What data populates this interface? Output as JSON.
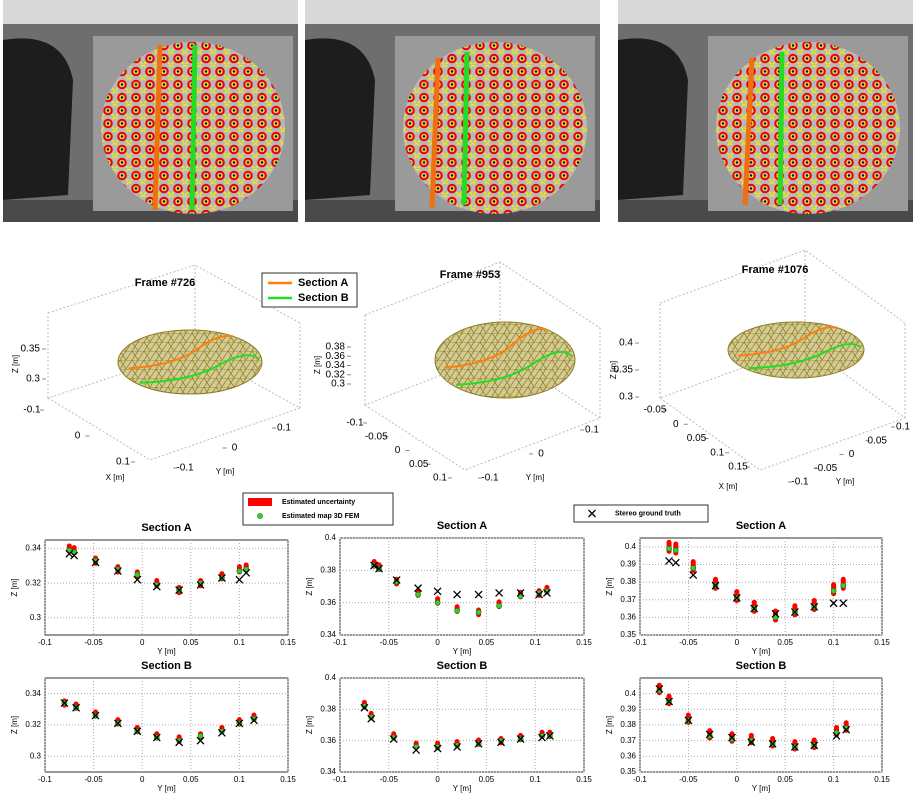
{
  "legend_sections": [
    {
      "name": "Section A",
      "color": "#ff7f0e"
    },
    {
      "name": "Section B",
      "color": "#22dd22"
    }
  ],
  "legend_estimates": [
    {
      "name": "Estimated uncertainty",
      "color": "#ff0000",
      "marker": "bar"
    },
    {
      "name": "Estimated map 3D FEM",
      "color": "#33cc33",
      "marker": "circle"
    }
  ],
  "legend_truth": [
    {
      "name": "Stereo ground truth",
      "color": "#000000",
      "marker": "x"
    }
  ],
  "chart_data": [
    {
      "type": "surface3d",
      "title": "Frame #726",
      "zlabel": "Z [m]",
      "xlabel": "X [m]",
      "ylabel": "Y [m]",
      "zlim": [
        0.3,
        0.35
      ],
      "zticks": [
        0.3,
        0.35
      ],
      "xlim": [
        -0.1,
        0.1
      ],
      "xticks": [
        -0.1,
        0,
        0.1
      ],
      "ylim": [
        -0.1,
        0.1
      ],
      "yticks": [
        -0.1,
        0,
        0.1
      ]
    },
    {
      "type": "surface3d",
      "title": "Frame #953",
      "zlabel": "Z [m]",
      "ylabel": "Y [m]",
      "zlim": [
        0.3,
        0.38
      ],
      "zticks": [
        0.3,
        0.32,
        0.34,
        0.36,
        0.38
      ],
      "xlim": [
        -0.1,
        0.1
      ],
      "xticks": [
        -0.1,
        -0.05,
        0,
        0.05,
        0.1
      ],
      "ylim": [
        -0.1,
        0.1
      ],
      "yticks": [
        -0.1,
        0,
        0.1
      ]
    },
    {
      "type": "surface3d",
      "title": "Frame #1076",
      "zlabel": "Z [m]",
      "xlabel": "X [m]",
      "ylabel": "Y [m]",
      "zlim": [
        0.3,
        0.4
      ],
      "zticks": [
        0.3,
        0.35,
        0.4
      ],
      "xlim": [
        -0.05,
        0.15
      ],
      "xticks": [
        -0.05,
        0,
        0.05,
        0.1,
        0.15
      ],
      "ylim": [
        -0.1,
        0.1
      ],
      "yticks": [
        -0.1,
        -0.05,
        0,
        0.05,
        0.1
      ]
    },
    {
      "type": "scatter",
      "title": "Section A",
      "xlabel": "Y [m]",
      "ylabel": "Z [m]",
      "grid": true,
      "xlim": [
        -0.1,
        0.15
      ],
      "xticks": [
        -0.1,
        -0.05,
        0,
        0.05,
        0.1,
        0.15
      ],
      "ylim": [
        0.29,
        0.345
      ],
      "yticks": [
        0.3,
        0.32,
        0.34
      ],
      "x": [
        -0.075,
        -0.07,
        -0.048,
        -0.025,
        -0.005,
        0.015,
        0.038,
        0.06,
        0.082,
        0.1,
        0.107
      ],
      "series": [
        {
          "color": "#ff0000",
          "marker": "bar",
          "values": [
            0.34,
            0.339,
            0.333,
            0.328,
            0.325,
            0.32,
            0.316,
            0.32,
            0.324,
            0.328,
            0.329
          ],
          "errors": [
            0.003,
            0.003,
            0.003,
            0.003,
            0.003,
            0.003,
            0.003,
            0.003,
            0.003,
            0.003,
            0.003
          ]
        },
        {
          "color": "#33cc33",
          "marker": "circle",
          "values": [
            0.339,
            0.338,
            0.333,
            0.328,
            0.325,
            0.319,
            0.316,
            0.32,
            0.323,
            0.327,
            0.328
          ]
        },
        {
          "color": "#000000",
          "marker": "x",
          "values": [
            0.337,
            0.336,
            0.332,
            0.327,
            0.322,
            0.318,
            0.316,
            0.319,
            0.323,
            0.322,
            0.326
          ]
        }
      ]
    },
    {
      "type": "scatter",
      "title": "Section A",
      "xlabel": "Y [m]",
      "ylabel": "Z [m]",
      "grid": true,
      "xlim": [
        -0.1,
        0.15
      ],
      "xticks": [
        -0.1,
        -0.05,
        0,
        0.05,
        0.1,
        0.15
      ],
      "ylim": [
        0.34,
        0.4
      ],
      "yticks": [
        0.34,
        0.36,
        0.38,
        0.4
      ],
      "x": [
        -0.065,
        -0.06,
        -0.042,
        -0.02,
        0,
        0.02,
        0.042,
        0.063,
        0.085,
        0.104,
        0.112
      ],
      "series": [
        {
          "color": "#ff0000",
          "marker": "bar",
          "values": [
            0.384,
            0.382,
            0.373,
            0.366,
            0.361,
            0.356,
            0.354,
            0.359,
            0.365,
            0.366,
            0.368
          ],
          "errors": [
            0.003,
            0.003,
            0.003,
            0.003,
            0.003,
            0.003,
            0.003,
            0.003,
            0.003,
            0.003,
            0.003
          ]
        },
        {
          "color": "#33cc33",
          "marker": "circle",
          "values": [
            0.383,
            0.381,
            0.373,
            0.365,
            0.36,
            0.355,
            0.354,
            0.358,
            0.364,
            0.366,
            0.367
          ]
        },
        {
          "color": "#000000",
          "marker": "x",
          "values": [
            0.383,
            0.381,
            0.374,
            0.369,
            0.367,
            0.365,
            0.365,
            0.366,
            0.366,
            0.365,
            0.366
          ]
        }
      ]
    },
    {
      "type": "scatter",
      "title": "Section A",
      "xlabel": "Y [m]",
      "ylabel": "Z [m]",
      "grid": true,
      "xlim": [
        -0.1,
        0.15
      ],
      "xticks": [
        -0.1,
        -0.05,
        0,
        0.05,
        0.1,
        0.15
      ],
      "ylim": [
        0.35,
        0.405
      ],
      "yticks": [
        0.35,
        0.36,
        0.37,
        0.38,
        0.39,
        0.4
      ],
      "x": [
        -0.07,
        -0.063,
        -0.045,
        -0.022,
        0,
        0.018,
        0.04,
        0.06,
        0.08,
        0.1,
        0.11
      ],
      "series": [
        {
          "color": "#ff0000",
          "marker": "bar",
          "values": [
            0.4,
            0.399,
            0.389,
            0.379,
            0.372,
            0.366,
            0.361,
            0.364,
            0.367,
            0.376,
            0.379
          ],
          "errors": [
            0.004,
            0.004,
            0.004,
            0.004,
            0.004,
            0.004,
            0.004,
            0.004,
            0.004,
            0.004,
            0.004
          ]
        },
        {
          "color": "#33cc33",
          "marker": "circle",
          "values": [
            0.399,
            0.398,
            0.388,
            0.378,
            0.371,
            0.365,
            0.36,
            0.363,
            0.366,
            0.375,
            0.378
          ]
        },
        {
          "color": "#000000",
          "marker": "x",
          "values": [
            0.392,
            0.391,
            0.384,
            0.378,
            0.371,
            0.365,
            0.362,
            0.363,
            0.366,
            0.368,
            0.368
          ]
        }
      ]
    },
    {
      "type": "scatter",
      "title": "Section B",
      "xlabel": "Y [m]",
      "ylabel": "Z [m]",
      "grid": true,
      "xlim": [
        -0.1,
        0.15
      ],
      "xticks": [
        -0.1,
        -0.05,
        0,
        0.05,
        0.1,
        0.15
      ],
      "ylim": [
        0.29,
        0.35
      ],
      "yticks": [
        0.3,
        0.32,
        0.34
      ],
      "x": [
        -0.08,
        -0.068,
        -0.048,
        -0.025,
        -0.005,
        0.015,
        0.038,
        0.06,
        0.082,
        0.1,
        0.115
      ],
      "series": [
        {
          "color": "#ff0000",
          "marker": "bar",
          "values": [
            0.334,
            0.332,
            0.327,
            0.322,
            0.317,
            0.313,
            0.311,
            0.313,
            0.317,
            0.322,
            0.325
          ],
          "errors": [
            0.003,
            0.003,
            0.003,
            0.003,
            0.003,
            0.003,
            0.003,
            0.003,
            0.003,
            0.003,
            0.003
          ]
        },
        {
          "color": "#33cc33",
          "marker": "circle",
          "values": [
            0.334,
            0.331,
            0.326,
            0.321,
            0.316,
            0.312,
            0.31,
            0.313,
            0.316,
            0.321,
            0.324
          ]
        },
        {
          "color": "#000000",
          "marker": "x",
          "values": [
            0.334,
            0.331,
            0.326,
            0.321,
            0.316,
            0.312,
            0.309,
            0.31,
            0.315,
            0.321,
            0.323
          ]
        }
      ]
    },
    {
      "type": "scatter",
      "title": "Section B",
      "xlabel": "Y [m]",
      "ylabel": "Z [m]",
      "grid": true,
      "xlim": [
        -0.1,
        0.15
      ],
      "xticks": [
        -0.1,
        -0.05,
        0,
        0.05,
        0.1,
        0.15
      ],
      "ylim": [
        0.34,
        0.4
      ],
      "yticks": [
        0.34,
        0.36,
        0.38,
        0.4
      ],
      "x": [
        -0.075,
        -0.068,
        -0.045,
        -0.022,
        0,
        0.02,
        0.042,
        0.065,
        0.085,
        0.107,
        0.115
      ],
      "series": [
        {
          "color": "#ff0000",
          "marker": "bar",
          "values": [
            0.383,
            0.376,
            0.363,
            0.357,
            0.357,
            0.358,
            0.359,
            0.36,
            0.362,
            0.364,
            0.364
          ],
          "errors": [
            0.003,
            0.003,
            0.003,
            0.003,
            0.003,
            0.003,
            0.003,
            0.003,
            0.003,
            0.003,
            0.003
          ]
        },
        {
          "color": "#33cc33",
          "marker": "circle",
          "values": [
            0.382,
            0.375,
            0.362,
            0.356,
            0.356,
            0.357,
            0.358,
            0.36,
            0.361,
            0.363,
            0.363
          ]
        },
        {
          "color": "#000000",
          "marker": "x",
          "values": [
            0.381,
            0.374,
            0.361,
            0.354,
            0.355,
            0.356,
            0.358,
            0.359,
            0.361,
            0.362,
            0.363
          ]
        }
      ]
    },
    {
      "type": "scatter",
      "title": "Section B",
      "xlabel": "Y [m]",
      "ylabel": "Z [m]",
      "grid": true,
      "xlim": [
        -0.1,
        0.15
      ],
      "xticks": [
        -0.1,
        -0.05,
        0,
        0.05,
        0.1,
        0.15
      ],
      "ylim": [
        0.35,
        0.41
      ],
      "yticks": [
        0.35,
        0.36,
        0.37,
        0.38,
        0.39,
        0.4
      ],
      "x": [
        -0.08,
        -0.07,
        -0.05,
        -0.028,
        -0.005,
        0.015,
        0.037,
        0.06,
        0.08,
        0.103,
        0.113
      ],
      "series": [
        {
          "color": "#ff0000",
          "marker": "bar",
          "values": [
            0.403,
            0.396,
            0.384,
            0.374,
            0.372,
            0.371,
            0.369,
            0.367,
            0.368,
            0.376,
            0.379
          ],
          "errors": [
            0.004,
            0.004,
            0.004,
            0.004,
            0.004,
            0.004,
            0.004,
            0.004,
            0.004,
            0.004,
            0.004
          ]
        },
        {
          "color": "#33cc33",
          "marker": "circle",
          "values": [
            0.402,
            0.395,
            0.383,
            0.373,
            0.371,
            0.37,
            0.368,
            0.366,
            0.367,
            0.375,
            0.378
          ]
        },
        {
          "color": "#000000",
          "marker": "x",
          "values": [
            0.403,
            0.395,
            0.383,
            0.374,
            0.372,
            0.369,
            0.368,
            0.366,
            0.367,
            0.373,
            0.377
          ]
        }
      ]
    }
  ]
}
